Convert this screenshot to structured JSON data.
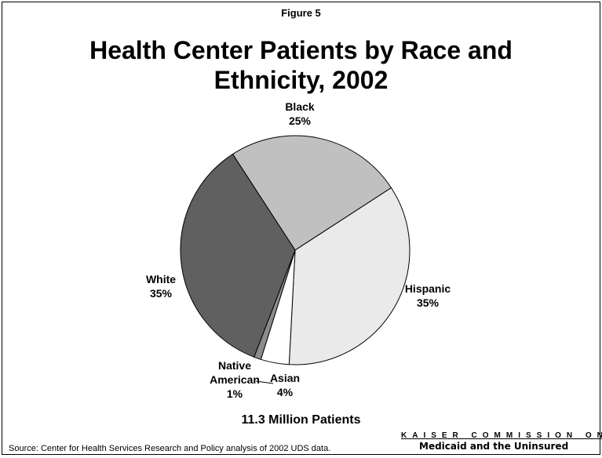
{
  "figure_label": "Figure 5",
  "title_line1": "Health Center Patients by Race and",
  "title_line2": "Ethnicity, 2002",
  "subtitle": "11.3 Million Patients",
  "source": "Source: Center for Health Services Research and Policy analysis of 2002 UDS data.",
  "logo": {
    "line1": "KAISER COMMISSION ON",
    "line2": "Medicaid and the Uninsured"
  },
  "chart_data": {
    "type": "pie",
    "slices": [
      {
        "name": "Black",
        "value": 25,
        "label_lines": [
          "Black",
          "25%"
        ],
        "color": "#c0c0c0"
      },
      {
        "name": "Hispanic",
        "value": 35,
        "label_lines": [
          "Hispanic",
          "35%"
        ],
        "color": "#eaeaea"
      },
      {
        "name": "Asian",
        "value": 4,
        "label_lines": [
          "Asian",
          "4%"
        ],
        "color": "#ffffff"
      },
      {
        "name": "Native American",
        "value": 1,
        "label_lines": [
          "Native",
          "American",
          "1%"
        ],
        "color": "#8c8c8c"
      },
      {
        "name": "White",
        "value": 35,
        "label_lines": [
          "White",
          "35%"
        ],
        "color": "#606060"
      }
    ]
  }
}
